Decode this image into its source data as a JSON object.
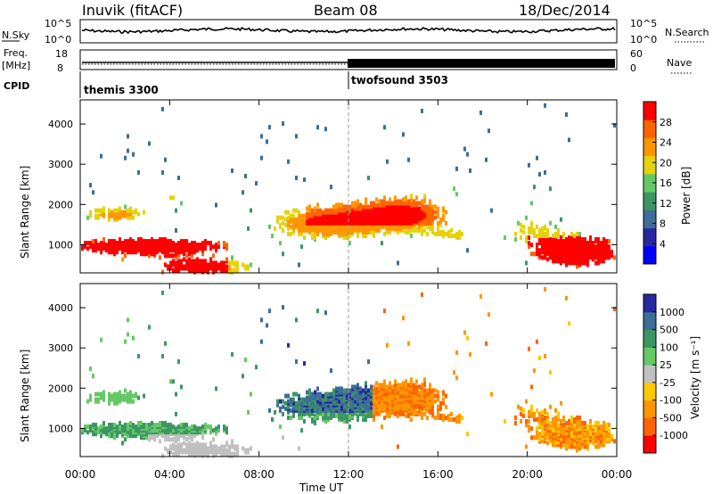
{
  "header": {
    "station": "Inuvik (fitACF)",
    "beam": "Beam 08",
    "date": "18/Dec/2014"
  },
  "meta": {
    "nsky_label": "N.Sky",
    "nsky_ticks": [
      "10^5",
      "10^0"
    ],
    "nsearch_label": "N.Search",
    "freq_label": "Freq.",
    "freq_unit": "[MHz]",
    "freq_ticks": [
      "18",
      "8"
    ],
    "nave_label": "Nave",
    "nave_ticks": [
      "60",
      "0"
    ],
    "cpid_label": "CPID",
    "cpid": [
      {
        "name": "themis 3300",
        "start_hour": 0
      },
      {
        "name": "twofsound 3503",
        "start_hour": 12
      }
    ]
  },
  "colors": {
    "power": [
      "#0000ff",
      "#2828a0",
      "#3c6e96",
      "#3c9664",
      "#64c864",
      "#e6d20a",
      "#ff9600",
      "#ff6400",
      "#ff0000"
    ],
    "velocity": [
      "#ff0000",
      "#ff6400",
      "#ff9600",
      "#ffc800",
      "#c0c0c0",
      "#64c864",
      "#3c9664",
      "#3c6e96",
      "#2828a0"
    ]
  },
  "chart_data": [
    {
      "type": "heatmap",
      "name": "power",
      "ylabel": "Slant Range [km]",
      "yticks": [
        1000,
        2000,
        3000,
        4000
      ],
      "ylim": [
        300,
        4600
      ],
      "xlim": [
        0,
        24
      ],
      "colorbar_label": "Power [dB]",
      "colorbar_ticks": [
        "28",
        "24",
        "20",
        "16",
        "12",
        "8",
        "4"
      ]
    },
    {
      "type": "heatmap",
      "name": "velocity",
      "ylabel": "Slant Range [km]",
      "yticks": [
        1000,
        2000,
        3000,
        4000
      ],
      "ylim": [
        300,
        4600
      ],
      "xlim": [
        0,
        24
      ],
      "colorbar_label": "Velocity [m s⁻¹]",
      "colorbar_ticks": [
        "1000",
        "500",
        "100",
        "25",
        "-25",
        "-100",
        "-500",
        "-1000"
      ]
    }
  ],
  "xaxis": {
    "label": "Time UT",
    "ticks": [
      "00:00",
      "04:00",
      "08:00",
      "12:00",
      "16:00",
      "20:00",
      "00:00"
    ]
  }
}
